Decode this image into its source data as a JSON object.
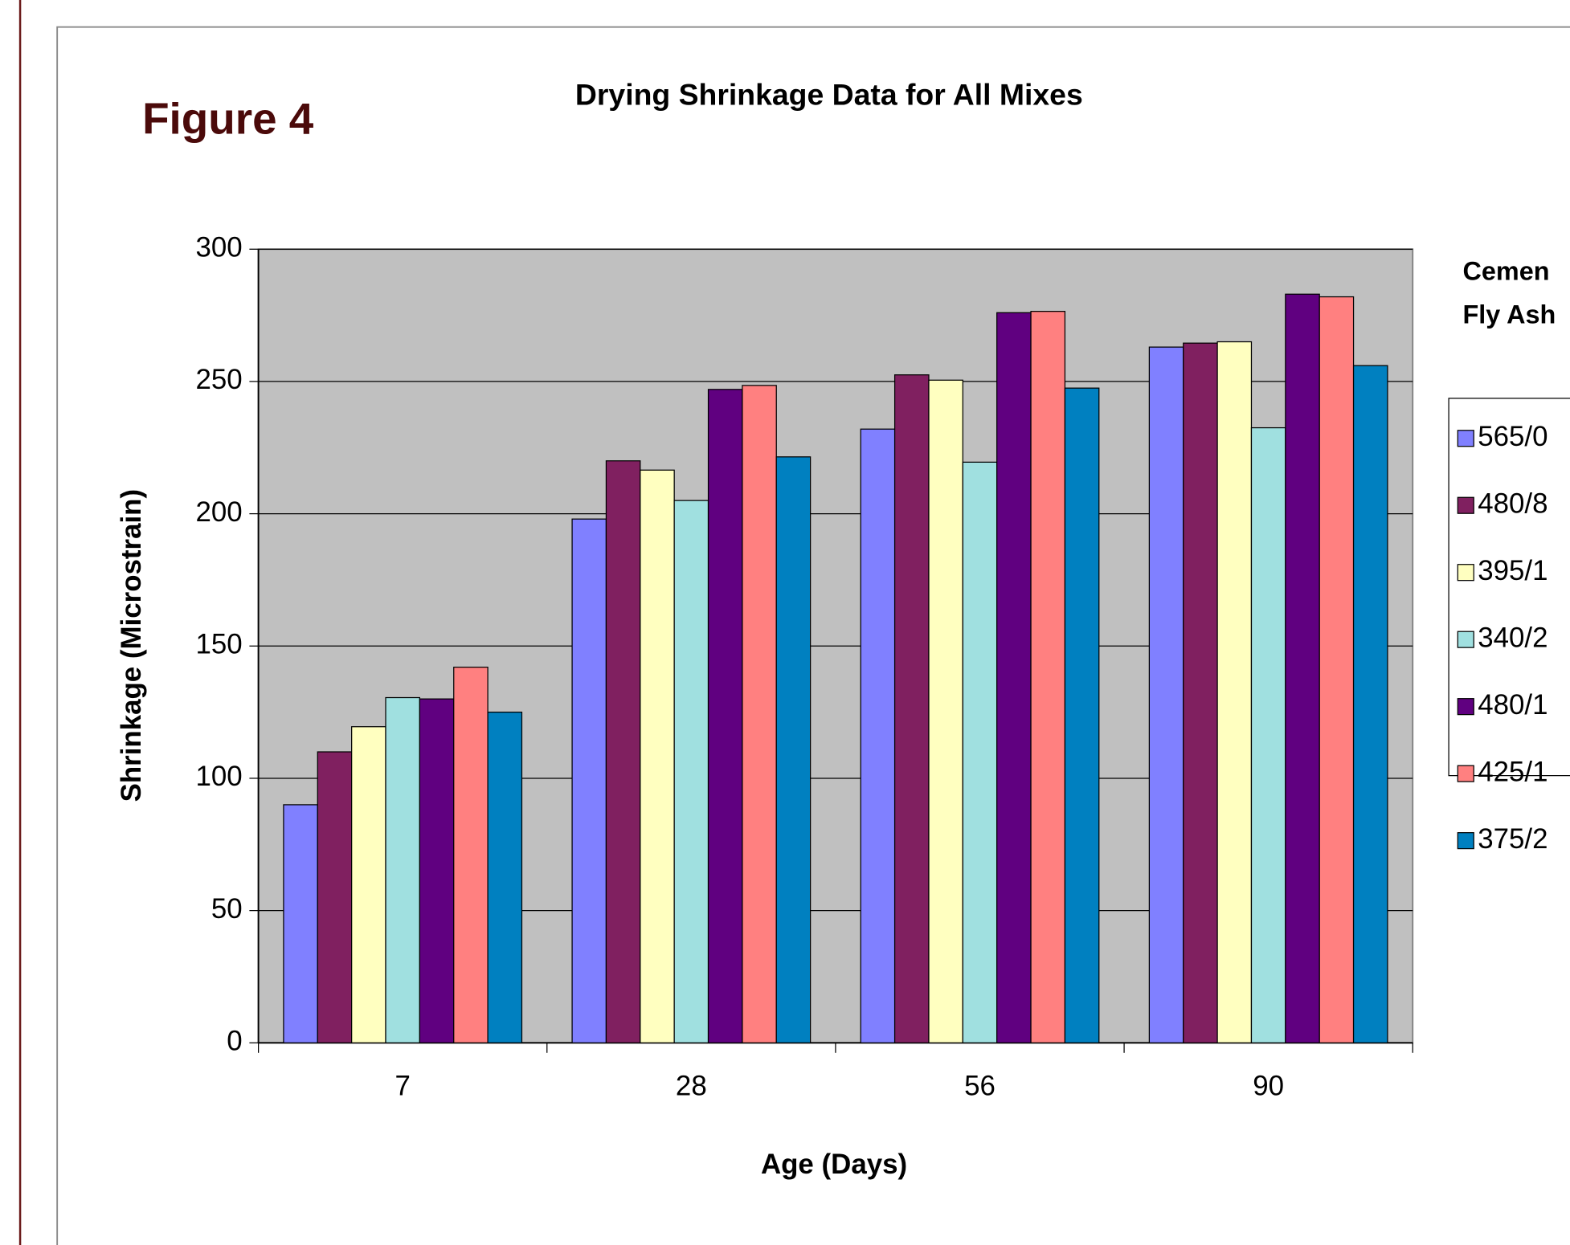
{
  "chart_data": {
    "type": "bar",
    "label": "Figure 4",
    "title": "Drying Shrinkage Data for All Mixes",
    "x_label": "Age (Days)",
    "y_label": "Shrinkage (Microstrain)",
    "legend_title": [
      "Cemen",
      "Fly Ash"
    ],
    "categories": [
      "7",
      "28",
      "56",
      "90"
    ],
    "series": [
      {
        "name": "565/0",
        "color": "#8080ff",
        "values": [
          90,
          198,
          232,
          263
        ]
      },
      {
        "name": "480/8",
        "color": "#802060",
        "values": [
          110,
          220,
          252.5,
          264.5
        ]
      },
      {
        "name": "395/1",
        "color": "#ffffc0",
        "values": [
          119.5,
          216.5,
          250.5,
          265
        ]
      },
      {
        "name": "340/2",
        "color": "#a0e0e0",
        "values": [
          130.5,
          205,
          219.5,
          232.5
        ]
      },
      {
        "name": "480/1",
        "color": "#600080",
        "values": [
          130,
          247,
          276,
          283
        ]
      },
      {
        "name": "425/1",
        "color": "#ff8080",
        "values": [
          142,
          248.5,
          276.5,
          282
        ]
      },
      {
        "name": "375/2",
        "color": "#0080c0",
        "values": [
          125,
          221.5,
          247.5,
          256
        ]
      }
    ],
    "ylim": [
      0,
      300
    ],
    "yticks": [
      0,
      50,
      100,
      150,
      200,
      250,
      300
    ],
    "grid": true
  }
}
